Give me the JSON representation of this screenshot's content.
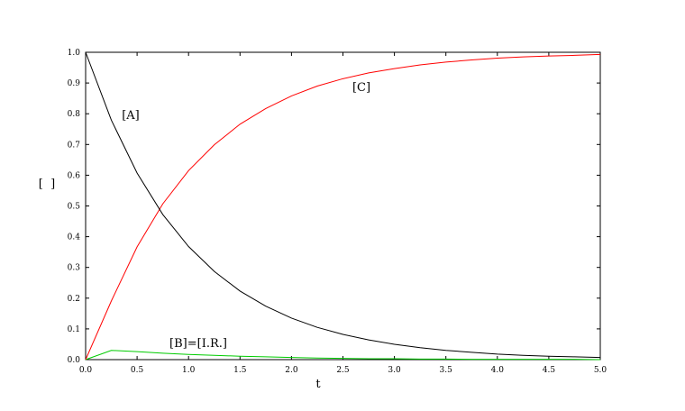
{
  "chart_data": {
    "type": "line",
    "xlabel": "t",
    "ylabel": "[  ]",
    "x": [
      0,
      0.25,
      0.5,
      0.75,
      1,
      1.25,
      1.5,
      1.75,
      2,
      2.25,
      2.5,
      2.75,
      3,
      3.25,
      3.5,
      3.75,
      4,
      4.25,
      4.5,
      4.75,
      5
    ],
    "series": [
      {
        "name": "[A]",
        "color": "#000000",
        "values": [
          1,
          0.779,
          0.607,
          0.472,
          0.368,
          0.287,
          0.223,
          0.174,
          0.135,
          0.105,
          0.082,
          0.064,
          0.05,
          0.039,
          0.03,
          0.024,
          0.018,
          0.014,
          0.011,
          0.009,
          0.007
        ]
      },
      {
        "name": "[C]",
        "color": "#ff0000",
        "values": [
          0,
          0.191,
          0.367,
          0.507,
          0.615,
          0.699,
          0.766,
          0.817,
          0.858,
          0.89,
          0.914,
          0.933,
          0.947,
          0.959,
          0.968,
          0.975,
          0.981,
          0.985,
          0.988,
          0.99,
          0.993
        ]
      },
      {
        "name": "[B]=[I.R.]",
        "color": "#00cc00",
        "values": [
          0,
          0.03,
          0.026,
          0.021,
          0.017,
          0.014,
          0.011,
          0.009,
          0.007,
          0.005,
          0.004,
          0.003,
          0.003,
          0.002,
          0.002,
          0.001,
          0.001,
          0.001,
          0.001,
          0.001,
          0
        ]
      }
    ],
    "xlim": [
      0,
      5
    ],
    "xticks": [
      {
        "value": 0,
        "label": "0.0"
      },
      0.5,
      {
        "value": 1,
        "label": "1.0"
      },
      1.5,
      {
        "value": 2,
        "label": "2.0"
      },
      2.5,
      {
        "value": 3,
        "label": "3.0"
      },
      3.5,
      {
        "value": 4,
        "label": "4.0"
      },
      4.5,
      {
        "value": 5,
        "label": "5.0"
      }
    ],
    "ylim": [
      0,
      1
    ],
    "yticks": [
      {
        "value": 0,
        "label": "0.0"
      },
      0.1,
      0.2,
      0.3,
      0.4,
      0.5,
      0.6,
      0.7,
      0.8,
      0.9,
      {
        "value": 1,
        "label": "1.0"
      }
    ]
  }
}
